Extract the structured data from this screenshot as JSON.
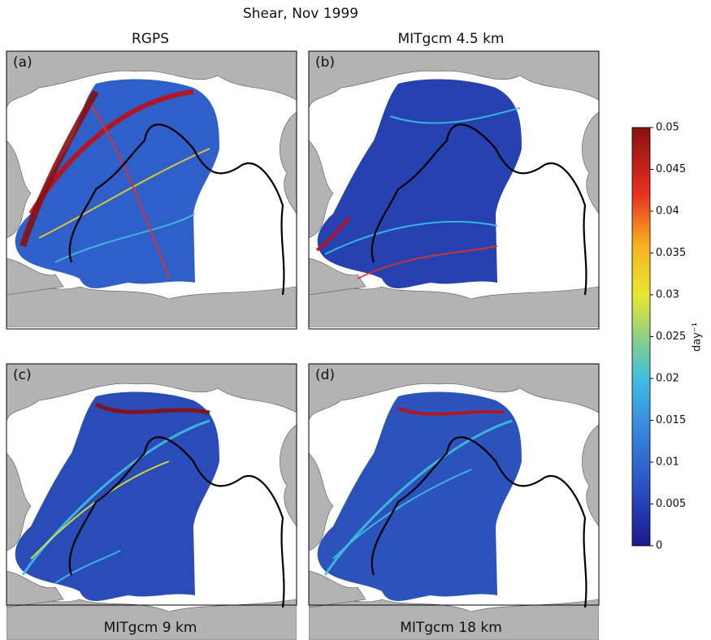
{
  "title": "Shear, Nov 1999",
  "panels": [
    {
      "tag": "(a)",
      "title": "RGPS"
    },
    {
      "tag": "(b)",
      "title": "MITgcm 4.5 km"
    },
    {
      "tag": "(c)",
      "title": "MITgcm 9 km"
    },
    {
      "tag": "(d)",
      "title": "MITgcm 18 km"
    }
  ],
  "colorbar": {
    "lim": [
      0,
      0.05
    ],
    "ticks": [
      0,
      0.005,
      0.01,
      0.015,
      0.02,
      0.025,
      0.03,
      0.035,
      0.04,
      0.045,
      0.05
    ],
    "label": "day⁻¹"
  }
}
